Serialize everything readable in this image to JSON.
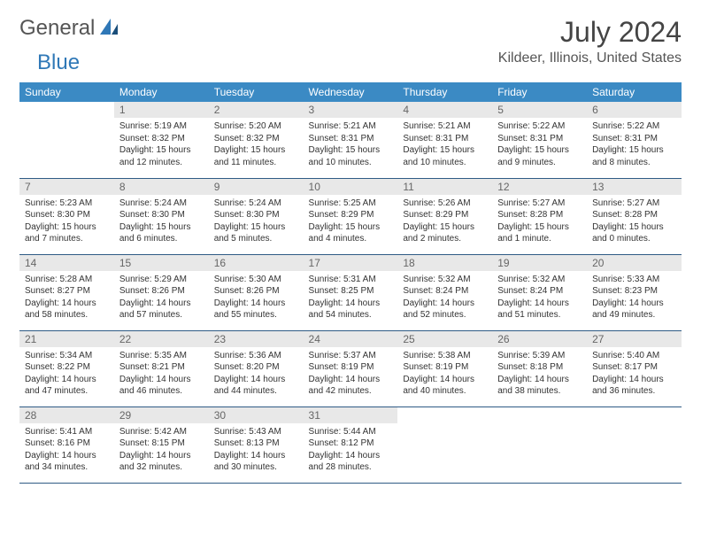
{
  "logo": {
    "general": "General",
    "blue": "Blue"
  },
  "title": "July 2024",
  "location": "Kildeer, Illinois, United States",
  "weekdays": [
    "Sunday",
    "Monday",
    "Tuesday",
    "Wednesday",
    "Thursday",
    "Friday",
    "Saturday"
  ],
  "colors": {
    "header_bg": "#3b8ac4",
    "row_border": "#2f5b85",
    "daynum_bg": "#e8e8e8",
    "logo_blue": "#2f78b7"
  },
  "weeks": [
    [
      {
        "n": "",
        "lines": []
      },
      {
        "n": "1",
        "lines": [
          "Sunrise: 5:19 AM",
          "Sunset: 8:32 PM",
          "Daylight: 15 hours",
          "and 12 minutes."
        ]
      },
      {
        "n": "2",
        "lines": [
          "Sunrise: 5:20 AM",
          "Sunset: 8:32 PM",
          "Daylight: 15 hours",
          "and 11 minutes."
        ]
      },
      {
        "n": "3",
        "lines": [
          "Sunrise: 5:21 AM",
          "Sunset: 8:31 PM",
          "Daylight: 15 hours",
          "and 10 minutes."
        ]
      },
      {
        "n": "4",
        "lines": [
          "Sunrise: 5:21 AM",
          "Sunset: 8:31 PM",
          "Daylight: 15 hours",
          "and 10 minutes."
        ]
      },
      {
        "n": "5",
        "lines": [
          "Sunrise: 5:22 AM",
          "Sunset: 8:31 PM",
          "Daylight: 15 hours",
          "and 9 minutes."
        ]
      },
      {
        "n": "6",
        "lines": [
          "Sunrise: 5:22 AM",
          "Sunset: 8:31 PM",
          "Daylight: 15 hours",
          "and 8 minutes."
        ]
      }
    ],
    [
      {
        "n": "7",
        "lines": [
          "Sunrise: 5:23 AM",
          "Sunset: 8:30 PM",
          "Daylight: 15 hours",
          "and 7 minutes."
        ]
      },
      {
        "n": "8",
        "lines": [
          "Sunrise: 5:24 AM",
          "Sunset: 8:30 PM",
          "Daylight: 15 hours",
          "and 6 minutes."
        ]
      },
      {
        "n": "9",
        "lines": [
          "Sunrise: 5:24 AM",
          "Sunset: 8:30 PM",
          "Daylight: 15 hours",
          "and 5 minutes."
        ]
      },
      {
        "n": "10",
        "lines": [
          "Sunrise: 5:25 AM",
          "Sunset: 8:29 PM",
          "Daylight: 15 hours",
          "and 4 minutes."
        ]
      },
      {
        "n": "11",
        "lines": [
          "Sunrise: 5:26 AM",
          "Sunset: 8:29 PM",
          "Daylight: 15 hours",
          "and 2 minutes."
        ]
      },
      {
        "n": "12",
        "lines": [
          "Sunrise: 5:27 AM",
          "Sunset: 8:28 PM",
          "Daylight: 15 hours",
          "and 1 minute."
        ]
      },
      {
        "n": "13",
        "lines": [
          "Sunrise: 5:27 AM",
          "Sunset: 8:28 PM",
          "Daylight: 15 hours",
          "and 0 minutes."
        ]
      }
    ],
    [
      {
        "n": "14",
        "lines": [
          "Sunrise: 5:28 AM",
          "Sunset: 8:27 PM",
          "Daylight: 14 hours",
          "and 58 minutes."
        ]
      },
      {
        "n": "15",
        "lines": [
          "Sunrise: 5:29 AM",
          "Sunset: 8:26 PM",
          "Daylight: 14 hours",
          "and 57 minutes."
        ]
      },
      {
        "n": "16",
        "lines": [
          "Sunrise: 5:30 AM",
          "Sunset: 8:26 PM",
          "Daylight: 14 hours",
          "and 55 minutes."
        ]
      },
      {
        "n": "17",
        "lines": [
          "Sunrise: 5:31 AM",
          "Sunset: 8:25 PM",
          "Daylight: 14 hours",
          "and 54 minutes."
        ]
      },
      {
        "n": "18",
        "lines": [
          "Sunrise: 5:32 AM",
          "Sunset: 8:24 PM",
          "Daylight: 14 hours",
          "and 52 minutes."
        ]
      },
      {
        "n": "19",
        "lines": [
          "Sunrise: 5:32 AM",
          "Sunset: 8:24 PM",
          "Daylight: 14 hours",
          "and 51 minutes."
        ]
      },
      {
        "n": "20",
        "lines": [
          "Sunrise: 5:33 AM",
          "Sunset: 8:23 PM",
          "Daylight: 14 hours",
          "and 49 minutes."
        ]
      }
    ],
    [
      {
        "n": "21",
        "lines": [
          "Sunrise: 5:34 AM",
          "Sunset: 8:22 PM",
          "Daylight: 14 hours",
          "and 47 minutes."
        ]
      },
      {
        "n": "22",
        "lines": [
          "Sunrise: 5:35 AM",
          "Sunset: 8:21 PM",
          "Daylight: 14 hours",
          "and 46 minutes."
        ]
      },
      {
        "n": "23",
        "lines": [
          "Sunrise: 5:36 AM",
          "Sunset: 8:20 PM",
          "Daylight: 14 hours",
          "and 44 minutes."
        ]
      },
      {
        "n": "24",
        "lines": [
          "Sunrise: 5:37 AM",
          "Sunset: 8:19 PM",
          "Daylight: 14 hours",
          "and 42 minutes."
        ]
      },
      {
        "n": "25",
        "lines": [
          "Sunrise: 5:38 AM",
          "Sunset: 8:19 PM",
          "Daylight: 14 hours",
          "and 40 minutes."
        ]
      },
      {
        "n": "26",
        "lines": [
          "Sunrise: 5:39 AM",
          "Sunset: 8:18 PM",
          "Daylight: 14 hours",
          "and 38 minutes."
        ]
      },
      {
        "n": "27",
        "lines": [
          "Sunrise: 5:40 AM",
          "Sunset: 8:17 PM",
          "Daylight: 14 hours",
          "and 36 minutes."
        ]
      }
    ],
    [
      {
        "n": "28",
        "lines": [
          "Sunrise: 5:41 AM",
          "Sunset: 8:16 PM",
          "Daylight: 14 hours",
          "and 34 minutes."
        ]
      },
      {
        "n": "29",
        "lines": [
          "Sunrise: 5:42 AM",
          "Sunset: 8:15 PM",
          "Daylight: 14 hours",
          "and 32 minutes."
        ]
      },
      {
        "n": "30",
        "lines": [
          "Sunrise: 5:43 AM",
          "Sunset: 8:13 PM",
          "Daylight: 14 hours",
          "and 30 minutes."
        ]
      },
      {
        "n": "31",
        "lines": [
          "Sunrise: 5:44 AM",
          "Sunset: 8:12 PM",
          "Daylight: 14 hours",
          "and 28 minutes."
        ]
      },
      {
        "n": "",
        "lines": []
      },
      {
        "n": "",
        "lines": []
      },
      {
        "n": "",
        "lines": []
      }
    ]
  ]
}
